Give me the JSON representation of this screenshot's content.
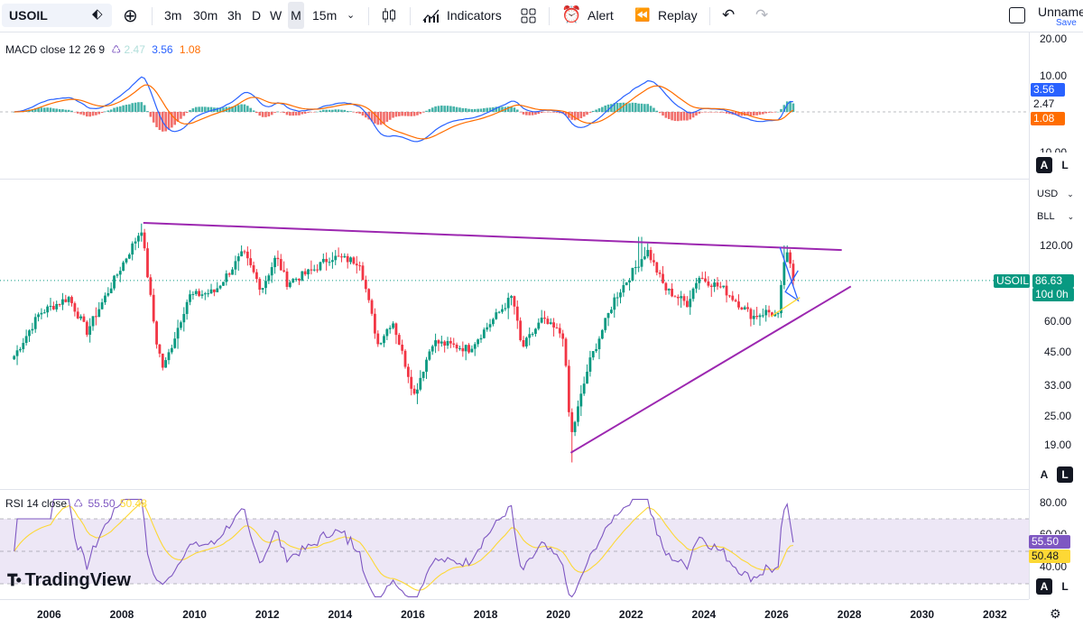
{
  "toolbar": {
    "symbol": "USOIL",
    "intervals": [
      "3m",
      "30m",
      "3h",
      "D",
      "W",
      "M",
      "15m"
    ],
    "active_interval": "M",
    "indicators_label": "Indicators",
    "alert_label": "Alert",
    "replay_label": "Replay",
    "layout_name": "Unname",
    "save_label": "Save",
    "icons": [
      "symbol-search-icon",
      "add-compare-icon",
      "interval-dropdown-icon",
      "candles-type-icon",
      "indicators-icon",
      "templates-icon",
      "alert-icon",
      "replay-icon",
      "undo-icon",
      "redo-icon"
    ]
  },
  "macd": {
    "legend": "MACD close 12 26 9",
    "hist_value": "2.47",
    "macd_value": "3.56",
    "signal_value": "1.08",
    "scale_labels": [
      "20.00",
      "10.00",
      "10.00"
    ],
    "colors": {
      "macd": "#2962ff",
      "signal": "#ff6d00",
      "hist_up": "#26a69a",
      "hist_down": "#ef5350"
    }
  },
  "price": {
    "currency": "USD",
    "unit": "BLL",
    "scale_labels": [
      "120.00",
      "60.00",
      "45.00",
      "33.00",
      "25.00",
      "19.00"
    ],
    "current_symbol": "USOIL",
    "current_price": "86.63",
    "countdown": "10d 0h",
    "colors": {
      "up": "#089981",
      "down": "#f23645",
      "trend": "#9c27b0"
    }
  },
  "rsi": {
    "legend": "RSI 14 close",
    "rsi_value": "55.50",
    "ma_value": "50.48",
    "scale_labels": [
      "80.00",
      "60.00",
      "40.00"
    ],
    "colors": {
      "rsi": "#7e57c2",
      "ma": "#fdd835",
      "band": "#ede7f6"
    }
  },
  "scale_buttons": [
    "A",
    "L"
  ],
  "watermark": "TradingView",
  "chart_data": {
    "type": "candlestick",
    "symbol": "USOIL",
    "timeframe": "1M",
    "x_tick_labels": [
      "2006",
      "2008",
      "2010",
      "2012",
      "2014",
      "2016",
      "2018",
      "2020",
      "2022",
      "2024",
      "2026",
      "2028",
      "2030",
      "2032"
    ],
    "price_axis": "log",
    "price_ticks": [
      120,
      60,
      45,
      33,
      25,
      19
    ],
    "close_anchors": [
      {
        "date": "2005.0",
        "close": 43
      },
      {
        "date": "2005.7",
        "close": 64
      },
      {
        "date": "2006.5",
        "close": 74
      },
      {
        "date": "2007.0",
        "close": 54
      },
      {
        "date": "2007.8",
        "close": 90
      },
      {
        "date": "2008.5",
        "close": 140
      },
      {
        "date": "2008.9",
        "close": 50
      },
      {
        "date": "2009.1",
        "close": 38
      },
      {
        "date": "2009.8",
        "close": 75
      },
      {
        "date": "2010.5",
        "close": 78
      },
      {
        "date": "2011.3",
        "close": 112
      },
      {
        "date": "2011.8",
        "close": 80
      },
      {
        "date": "2012.2",
        "close": 108
      },
      {
        "date": "2012.5",
        "close": 85
      },
      {
        "date": "2013.2",
        "close": 95
      },
      {
        "date": "2013.7",
        "close": 108
      },
      {
        "date": "2014.5",
        "close": 103
      },
      {
        "date": "2015.0",
        "close": 48
      },
      {
        "date": "2015.4",
        "close": 60
      },
      {
        "date": "2016.0",
        "close": 30
      },
      {
        "date": "2016.5",
        "close": 49
      },
      {
        "date": "2017.5",
        "close": 46
      },
      {
        "date": "2018.7",
        "close": 75
      },
      {
        "date": "2018.95",
        "close": 46
      },
      {
        "date": "2019.5",
        "close": 60
      },
      {
        "date": "2020.1",
        "close": 52
      },
      {
        "date": "2020.3",
        "close": 20
      },
      {
        "date": "2020.8",
        "close": 40
      },
      {
        "date": "2021.5",
        "close": 73
      },
      {
        "date": "2022.4",
        "close": 115
      },
      {
        "date": "2022.9",
        "close": 80
      },
      {
        "date": "2023.5",
        "close": 70
      },
      {
        "date": "2023.8",
        "close": 90
      },
      {
        "date": "2024.5",
        "close": 80
      },
      {
        "date": "2025.3",
        "close": 62
      },
      {
        "date": "2025.7",
        "close": 65
      },
      {
        "date": "2026.0",
        "close": 62
      },
      {
        "date": "2026.2",
        "close": 115
      },
      {
        "date": "2026.45",
        "close": 86.63
      }
    ],
    "trendlines": [
      {
        "from": {
          "date": "2008.55",
          "price": 148
        },
        "to": {
          "date": "2027.75",
          "price": 115
        }
      },
      {
        "from": {
          "date": "2020.3",
          "price": 17.5
        },
        "to": {
          "date": "2028.0",
          "price": 82
        }
      }
    ],
    "macd_series": {
      "last_macd": 3.56,
      "last_signal": 1.08,
      "last_hist": 2.47,
      "ylim": [
        -10,
        20
      ]
    },
    "rsi_series": {
      "last_rsi": 55.5,
      "last_ma": 50.48,
      "band": [
        30,
        70
      ]
    }
  }
}
